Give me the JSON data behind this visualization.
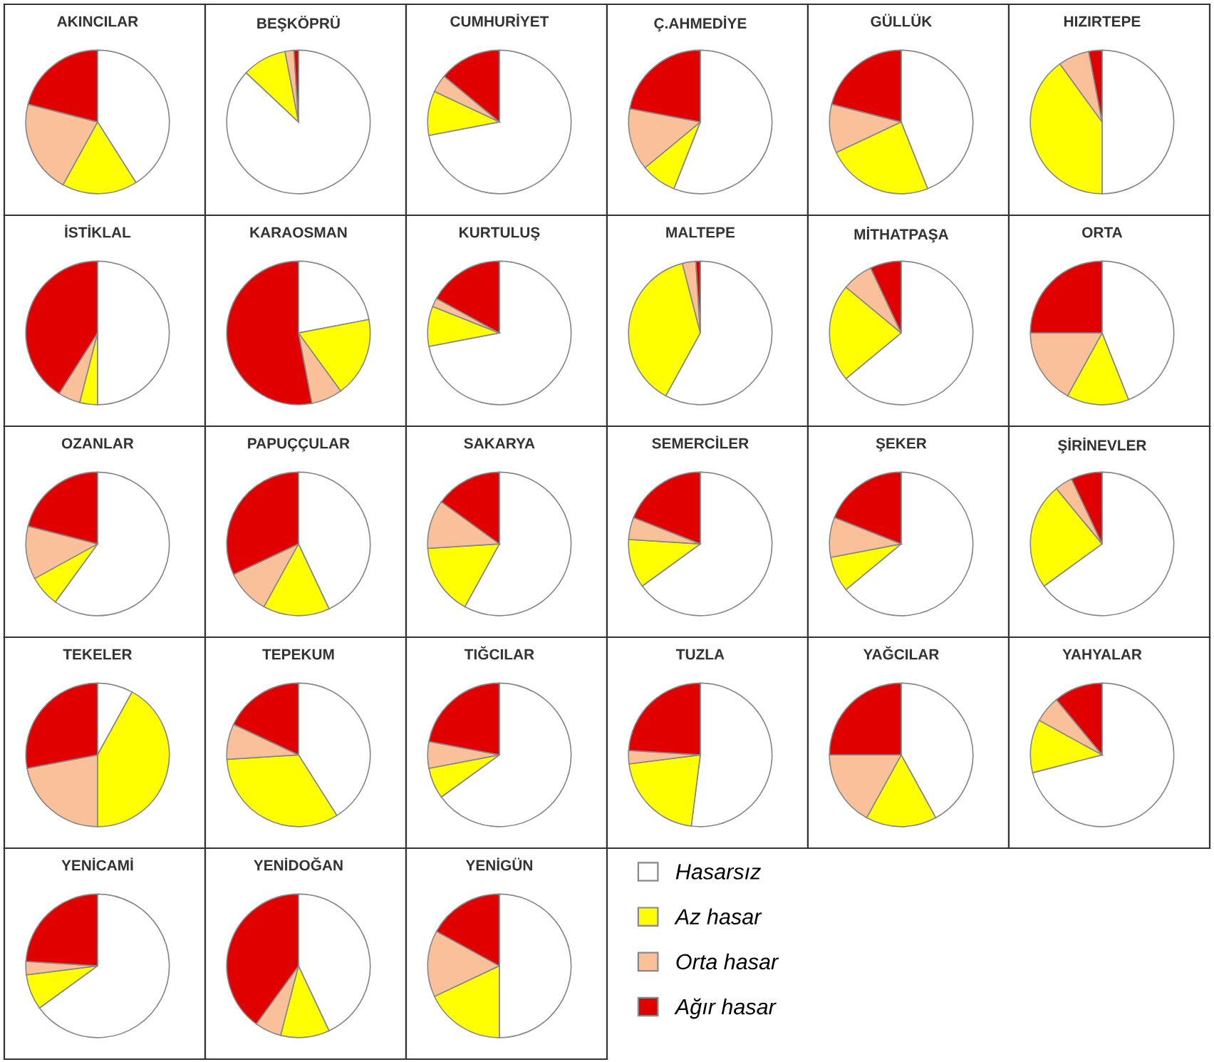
{
  "chart_data": [
    {
      "type": "pie",
      "title": "AKINCILAR",
      "categories": [
        "Hasarsız",
        "Az hasar",
        "Orta hasar",
        "Ağır hasar"
      ],
      "values": [
        41,
        17,
        21,
        21
      ],
      "colors": [
        "#ffffff",
        "#ffff00",
        "#f9c09a",
        "#e00000"
      ],
      "legend": "bottom"
    },
    {
      "type": "pie",
      "title": "BEŞKÖPRÜ",
      "categories": [
        null,
        null,
        null,
        null
      ],
      "values": [
        87,
        10,
        2,
        1
      ],
      "colors": [
        "#ffffff",
        "#ffff00",
        "#f9c09a",
        "#e00000"
      ]
    },
    {
      "type": "pie",
      "title": "CUMHURİYET",
      "categories": [
        null,
        null,
        null,
        null
      ],
      "values": [
        72,
        10,
        4,
        14
      ],
      "colors": [
        "#ffffff",
        "#ffff00",
        "#f9c09a",
        "#e00000"
      ]
    },
    {
      "type": "pie",
      "title": "Ç.AHMEDİYE",
      "categories": [
        null,
        null,
        null,
        null
      ],
      "values": [
        56,
        8,
        14,
        22
      ],
      "colors": [
        "#ffffff",
        "#ffff00",
        "#f9c09a",
        "#e00000"
      ]
    },
    {
      "type": "pie",
      "title": "GÜLLÜK",
      "categories": [
        null,
        null,
        null,
        null
      ],
      "values": [
        44,
        24,
        11,
        21
      ],
      "colors": [
        "#ffffff",
        "#ffff00",
        "#f9c09a",
        "#e00000"
      ]
    },
    {
      "type": "pie",
      "title": "HIZIRTEPE",
      "categories": [
        null,
        null,
        null,
        null
      ],
      "values": [
        50,
        40,
        7,
        3
      ],
      "colors": [
        "#ffffff",
        "#ffff00",
        "#f9c09a",
        "#e00000"
      ]
    },
    {
      "type": "pie",
      "title": "İSTİKLAL",
      "categories": [
        null,
        null,
        null,
        null
      ],
      "values": [
        50,
        4,
        5,
        41
      ],
      "colors": [
        "#ffffff",
        "#ffff00",
        "#f9c09a",
        "#e00000"
      ]
    },
    {
      "type": "pie",
      "title": "KARAOSMAN",
      "categories": [
        null,
        null,
        null,
        null
      ],
      "values": [
        22,
        18,
        7,
        53
      ],
      "colors": [
        "#ffffff",
        "#ffff00",
        "#f9c09a",
        "#e00000"
      ]
    },
    {
      "type": "pie",
      "title": "KURTULUŞ",
      "categories": [
        null,
        null,
        null,
        null
      ],
      "values": [
        72,
        9,
        2,
        17
      ],
      "colors": [
        "#ffffff",
        "#ffff00",
        "#f9c09a",
        "#e00000"
      ]
    },
    {
      "type": "pie",
      "title": "MALTEPE",
      "categories": [
        null,
        null,
        null,
        null
      ],
      "values": [
        58,
        38,
        3,
        1
      ],
      "colors": [
        "#ffffff",
        "#ffff00",
        "#f9c09a",
        "#e00000"
      ]
    },
    {
      "type": "pie",
      "title": "MİTHATPAŞA",
      "categories": [
        null,
        null,
        null,
        null
      ],
      "values": [
        64,
        22,
        7,
        7
      ],
      "colors": [
        "#ffffff",
        "#ffff00",
        "#f9c09a",
        "#e00000"
      ]
    },
    {
      "type": "pie",
      "title": "ORTA",
      "categories": [
        null,
        null,
        null,
        null
      ],
      "values": [
        44,
        14,
        17,
        25
      ],
      "colors": [
        "#ffffff",
        "#ffff00",
        "#f9c09a",
        "#e00000"
      ]
    },
    {
      "type": "pie",
      "title": "OZANLAR",
      "categories": [
        null,
        null,
        null,
        null
      ],
      "values": [
        60,
        7,
        12,
        21
      ],
      "colors": [
        "#ffffff",
        "#ffff00",
        "#f9c09a",
        "#e00000"
      ]
    },
    {
      "type": "pie",
      "title": "PAPUÇÇULAR",
      "categories": [
        null,
        null,
        null,
        null
      ],
      "values": [
        43,
        15,
        10,
        32
      ],
      "colors": [
        "#ffffff",
        "#ffff00",
        "#f9c09a",
        "#e00000"
      ]
    },
    {
      "type": "pie",
      "title": "SAKARYA",
      "categories": [
        null,
        null,
        null,
        null
      ],
      "values": [
        58,
        16,
        11,
        15
      ],
      "colors": [
        "#ffffff",
        "#ffff00",
        "#f9c09a",
        "#e00000"
      ]
    },
    {
      "type": "pie",
      "title": "SEMERCİLER",
      "categories": [
        null,
        null,
        null,
        null
      ],
      "values": [
        65,
        11,
        5,
        19
      ],
      "colors": [
        "#ffffff",
        "#ffff00",
        "#f9c09a",
        "#e00000"
      ]
    },
    {
      "type": "pie",
      "title": "ŞEKER",
      "categories": [
        null,
        null,
        null,
        null
      ],
      "values": [
        64,
        8,
        9,
        19
      ],
      "colors": [
        "#ffffff",
        "#ffff00",
        "#f9c09a",
        "#e00000"
      ]
    },
    {
      "type": "pie",
      "title": "ŞİRİNEVLER",
      "categories": [
        null,
        null,
        null,
        null
      ],
      "values": [
        65,
        24,
        4,
        7
      ],
      "colors": [
        "#ffffff",
        "#ffff00",
        "#f9c09a",
        "#e00000"
      ]
    },
    {
      "type": "pie",
      "title": "TEKELER",
      "categories": [
        null,
        null,
        null,
        null
      ],
      "values": [
        8,
        42,
        22,
        28
      ],
      "colors": [
        "#ffffff",
        "#ffff00",
        "#f9c09a",
        "#e00000"
      ]
    },
    {
      "type": "pie",
      "title": "TEPEKUM",
      "categories": [
        null,
        null,
        null,
        null
      ],
      "values": [
        41,
        33,
        8,
        18
      ],
      "colors": [
        "#ffffff",
        "#ffff00",
        "#f9c09a",
        "#e00000"
      ]
    },
    {
      "type": "pie",
      "title": "TIĞCILAR",
      "categories": [
        null,
        null,
        null,
        null
      ],
      "values": [
        65,
        7,
        6,
        22
      ],
      "colors": [
        "#ffffff",
        "#ffff00",
        "#f9c09a",
        "#e00000"
      ]
    },
    {
      "type": "pie",
      "title": "TUZLA",
      "categories": [
        null,
        null,
        null,
        null
      ],
      "values": [
        52,
        21,
        3,
        24
      ],
      "colors": [
        "#ffffff",
        "#ffff00",
        "#f9c09a",
        "#e00000"
      ]
    },
    {
      "type": "pie",
      "title": "YAĞCILAR",
      "categories": [
        null,
        null,
        null,
        null
      ],
      "values": [
        42,
        16,
        17,
        25
      ],
      "colors": [
        "#ffffff",
        "#ffff00",
        "#f9c09a",
        "#e00000"
      ]
    },
    {
      "type": "pie",
      "title": "YAHYALAR",
      "categories": [
        null,
        null,
        null,
        null
      ],
      "values": [
        71,
        12,
        6,
        11
      ],
      "colors": [
        "#ffffff",
        "#ffff00",
        "#f9c09a",
        "#e00000"
      ]
    },
    {
      "type": "pie",
      "title": "YENİCAMİ",
      "categories": [
        null,
        null,
        null,
        null
      ],
      "values": [
        65,
        8,
        3,
        24
      ],
      "colors": [
        "#ffffff",
        "#ffff00",
        "#f9c09a",
        "#e00000"
      ]
    },
    {
      "type": "pie",
      "title": "YENİDOĞAN",
      "categories": [
        null,
        null,
        null,
        null
      ],
      "values": [
        43,
        11,
        6,
        40
      ],
      "colors": [
        "#ffffff",
        "#ffff00",
        "#f9c09a",
        "#e00000"
      ]
    },
    {
      "type": "pie",
      "title": "YENİGÜN",
      "categories": [
        null,
        null,
        null,
        null
      ],
      "values": [
        50,
        18,
        15,
        17
      ],
      "colors": [
        "#ffffff",
        "#ffff00",
        "#f9c09a",
        "#e00000"
      ]
    }
  ]
}
